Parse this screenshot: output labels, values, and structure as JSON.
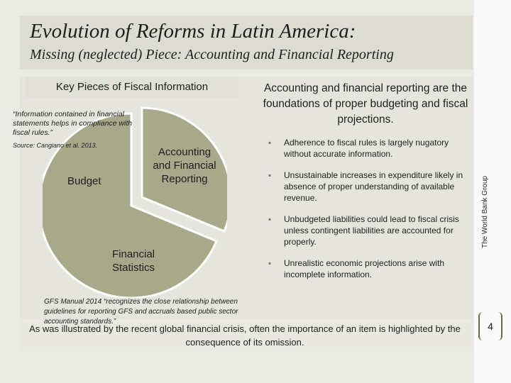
{
  "title": "Evolution of  Reforms in Latin America:",
  "subtitle": "Missing (neglected) Piece: Accounting and Financial Reporting",
  "left_panel": {
    "heading": "Key Pieces of Fiscal Information",
    "quote": "“Information contained in financial statements helps in compliance with  fiscal rules.”",
    "source": "Source:  Cangiano et al.  2013.",
    "pie_labels": {
      "budget": "Budget",
      "financial_statistics": "Financial Statistics",
      "accounting": "Accounting and Financial Reporting"
    },
    "gfs_quote": "GFS Manual 2014 “recognizes the close relationship between guidelines for reporting GFS and accruals based public sector accounting standards.”"
  },
  "right_panel": {
    "heading": "Accounting and financial reporting are the foundations of proper budgeting and fiscal projections.",
    "bullets": [
      "Adherence to fiscal rules is largely nugatory without accurate information.",
      "Unsustainable increases in expenditure likely in absence of proper understanding of available revenue.",
      "Unbudgeted liabilities could lead to fiscal crisis unless contingent liabilities are accounted for properly.",
      "Unrealistic economic projections arise with incomplete information."
    ],
    "bullet_marker": "▪"
  },
  "footer": "As was illustrated by the recent global financial crisis, often the importance of an item is highlighted by the consequence of its omission.",
  "side_label": "The World Bank Group",
  "page_number": "4",
  "colors": {
    "pie_fill": "#a8a88a",
    "pie_stroke": "#ffffff",
    "background": "#ebebe5"
  }
}
